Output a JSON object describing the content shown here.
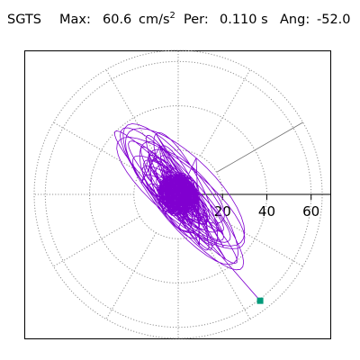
{
  "header": {
    "station": "SGTS",
    "max_label": "Max:",
    "max_value": "60.6",
    "max_unit": "cm/s",
    "max_unit_exp": "2",
    "period_label": "Per:",
    "period_value": "0.110 s",
    "angle_label": "Ang:",
    "angle_value": "-52.0"
  },
  "chart_data": {
    "type": "polar_orbit",
    "title": "SGTS  Max: 60.6 cm/s2  Per: 0.110 s  Ang: -52.0",
    "radial_max": 65,
    "radial_ticks": [
      20,
      40,
      60
    ],
    "angular_spokes_deg": [
      0,
      30,
      60,
      90,
      120,
      150,
      180,
      210,
      240,
      270,
      300,
      330
    ],
    "highlight_direction_deg": 30,
    "trace_color": "#8000d0",
    "grid_color": "#909090",
    "max_point": {
      "x": 37,
      "y": -48,
      "color": "#009a7a"
    },
    "principal_angle_deg": -52,
    "max_amplitude": 60.6
  }
}
